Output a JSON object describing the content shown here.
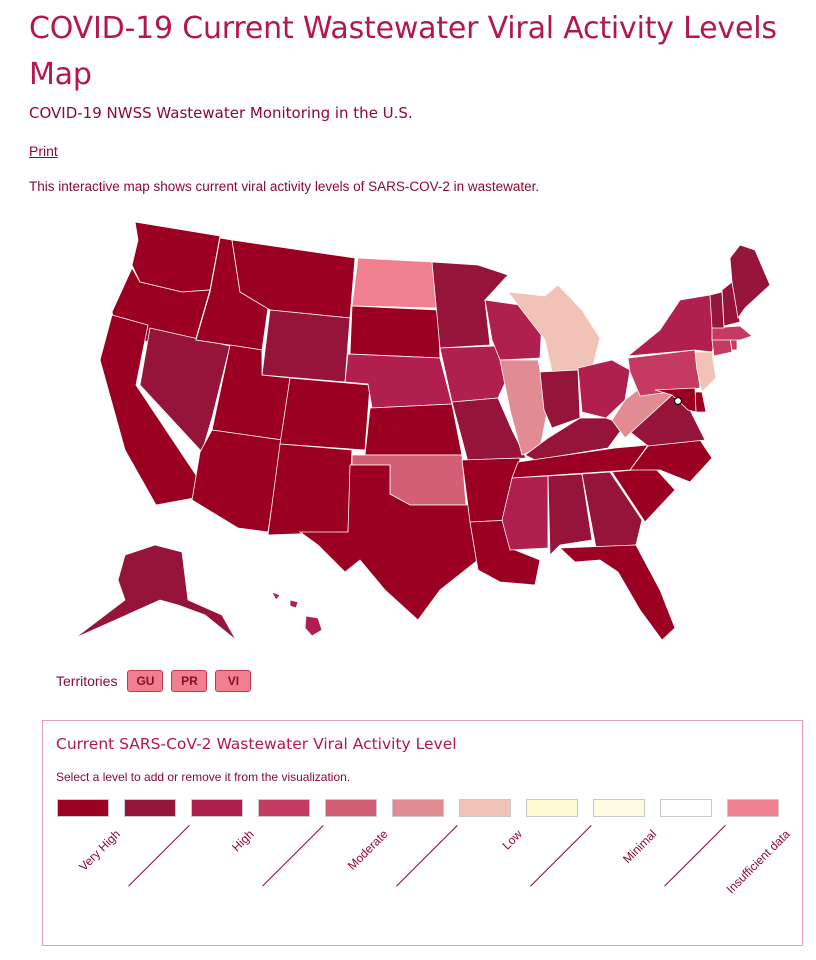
{
  "header": {
    "title": "COVID-19 Current Wastewater Viral Activity Levels Map",
    "subtitle": "COVID-19 NWSS Wastewater Monitoring in the U.S.",
    "print_label": "Print",
    "description": "This interactive map shows current viral activity levels of SARS-COV-2 in wastewater."
  },
  "colors": {
    "very_high": "#9b0022",
    "very_high_2": "#96133a",
    "high": "#b01f4d",
    "high_2": "#c53a60",
    "moderate": "#d35f76",
    "moderate_2": "#e08c92",
    "low": "#f1c3b6",
    "low_2": "#fdf9d0",
    "minimal": "#fefde4",
    "minimal_2": "#ffffff",
    "insufficient": "#f08090"
  },
  "territories": {
    "label": "Territories",
    "items": [
      {
        "code": "GU",
        "color": "#f08090"
      },
      {
        "code": "PR",
        "color": "#f08090"
      },
      {
        "code": "VI",
        "color": "#f08090"
      }
    ]
  },
  "legend": {
    "title": "Current SARS-CoV-2 Wastewater Viral Activity Level",
    "instruction": "Select a level to add or remove it from the visualization.",
    "levels": [
      {
        "label": "Very High",
        "color": "#9b0022"
      },
      {
        "label": "",
        "color": "#96133a"
      },
      {
        "label": "High",
        "color": "#b01f4d"
      },
      {
        "label": "",
        "color": "#c53a60"
      },
      {
        "label": "Moderate",
        "color": "#d35f76"
      },
      {
        "label": "",
        "color": "#e08c92"
      },
      {
        "label": "Low",
        "color": "#f1c3b6"
      },
      {
        "label": "",
        "color": "#fdf9d0"
      },
      {
        "label": "Minimal",
        "color": "#fefde4"
      },
      {
        "label": "",
        "color": "#ffffff"
      },
      {
        "label": "Insufficient data",
        "color": "#f08090"
      }
    ]
  },
  "states": {
    "WA": "very_high",
    "OR": "very_high",
    "CA": "very_high",
    "ID": "very_high",
    "NV": "very_high_2",
    "MT": "very_high",
    "WY": "very_high_2",
    "UT": "very_high",
    "AZ": "very_high",
    "CO": "very_high",
    "NM": "very_high",
    "ND": "insufficient",
    "SD": "very_high",
    "NE": "high",
    "KS": "very_high",
    "OK": "moderate",
    "TX": "very_high",
    "MN": "very_high_2",
    "IA": "high",
    "MO": "very_high_2",
    "AR": "very_high",
    "LA": "very_high",
    "WI": "high",
    "IL": "moderate_2",
    "MI": "low",
    "IN": "very_high_2",
    "OH": "high",
    "KY": "very_high_2",
    "TN": "very_high",
    "MS": "high",
    "AL": "very_high_2",
    "GA": "very_high_2",
    "FL": "very_high",
    "SC": "very_high",
    "NC": "very_high",
    "VA": "very_high_2",
    "WV": "moderate_2",
    "PA": "high_2",
    "NY": "high",
    "VT": "very_high_2",
    "NH": "very_high_2",
    "ME": "very_high_2",
    "MA": "high_2",
    "CT": "high_2",
    "RI": "high_2",
    "NJ": "low",
    "DE": "very_high",
    "MD": "very_high",
    "AK": "very_high_2",
    "HI": "high",
    "DC": "minimal_2"
  }
}
